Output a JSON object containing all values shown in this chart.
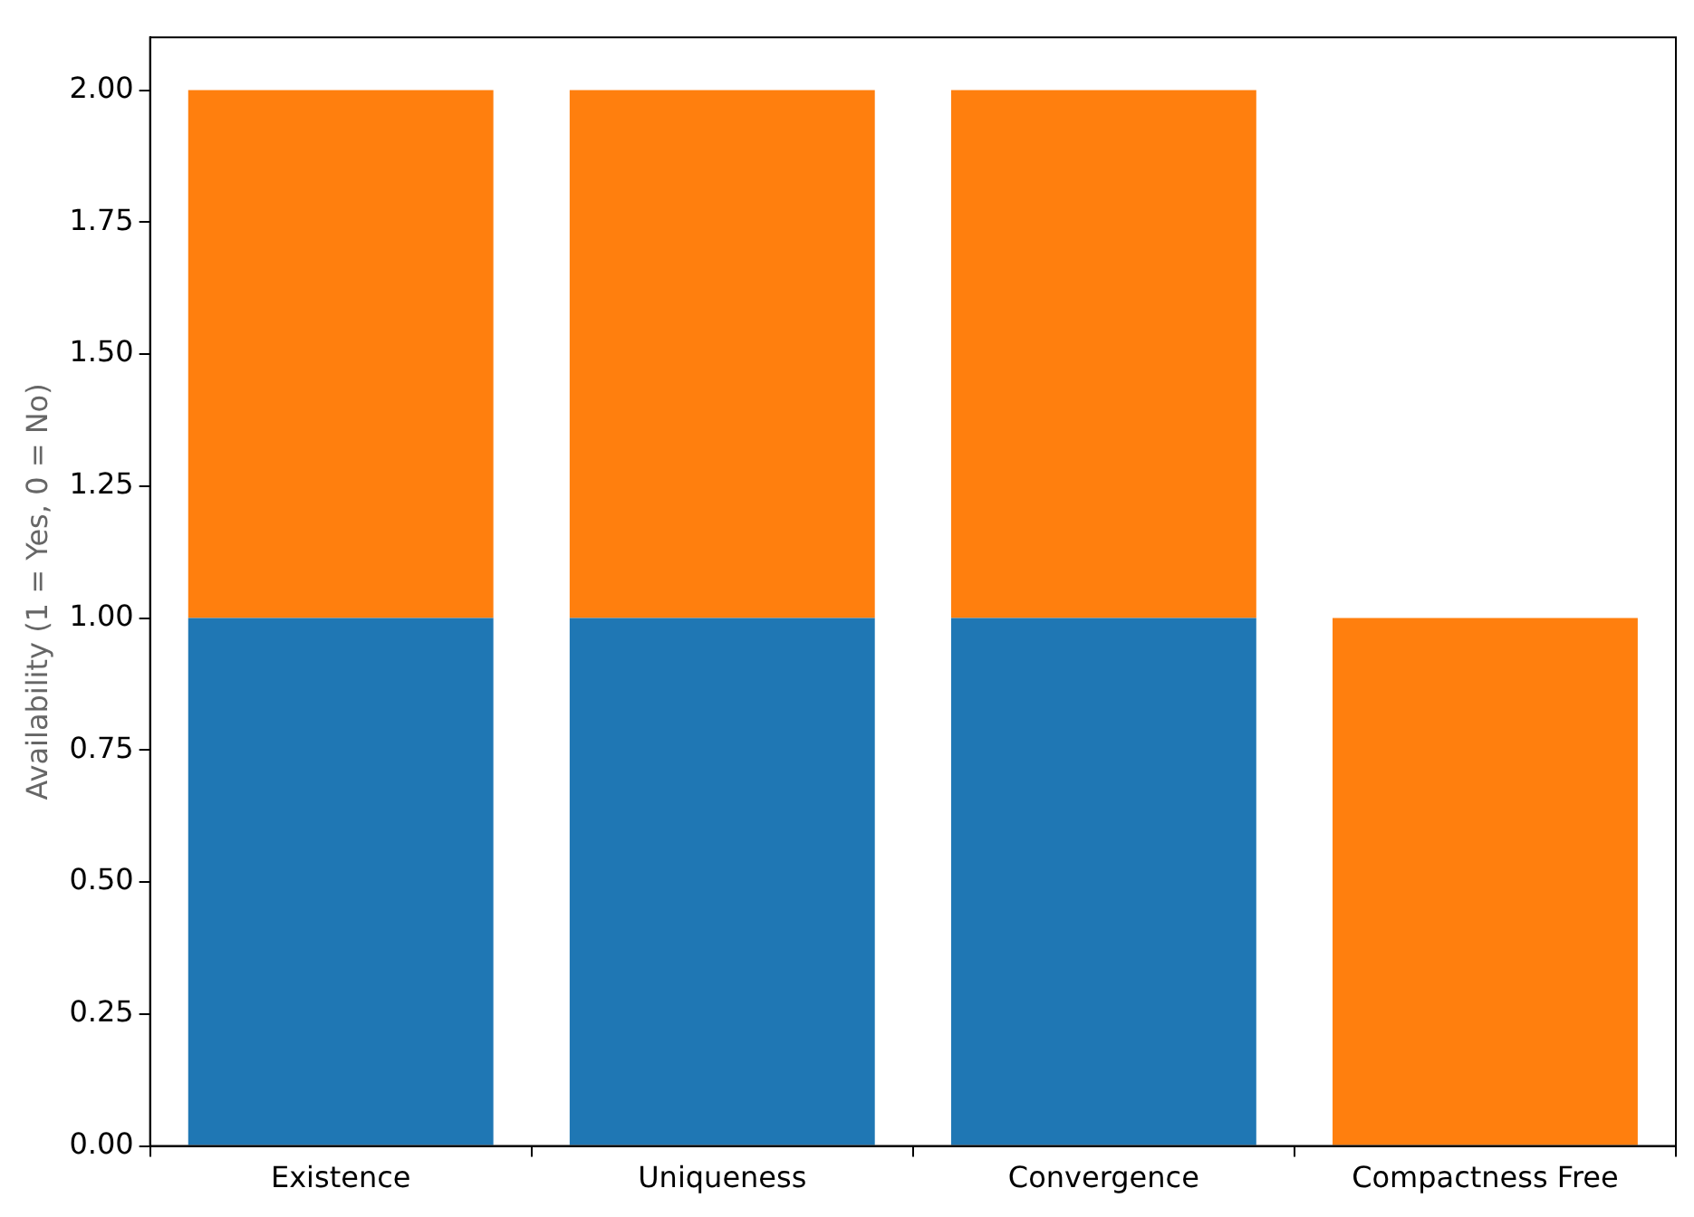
{
  "chart_data": {
    "type": "bar",
    "stacked": true,
    "ylabel": "Availability (1 = Yes, 0 = No)",
    "categories": [
      "Existence",
      "Uniqueness",
      "Convergence",
      "Compactness Free"
    ],
    "series": [
      {
        "color": "#1f77b4",
        "values": [
          1,
          1,
          1,
          0
        ]
      },
      {
        "color": "#ff7f0e",
        "values": [
          1,
          1,
          1,
          1
        ]
      }
    ],
    "ylim": [
      0,
      2.1
    ],
    "yticks": [
      {
        "value": 0,
        "label": "0.00"
      },
      {
        "value": 0.25,
        "label": "0.25"
      },
      {
        "value": 0.5,
        "label": "0.50"
      },
      {
        "value": 0.75,
        "label": "0.75"
      },
      {
        "value": 1,
        "label": "1.00"
      },
      {
        "value": 1.25,
        "label": "1.25"
      },
      {
        "value": 1.5,
        "label": "1.50"
      },
      {
        "value": 1.75,
        "label": "1.75"
      },
      {
        "value": 2,
        "label": "2.00"
      }
    ],
    "grid": false,
    "legend": false
  }
}
